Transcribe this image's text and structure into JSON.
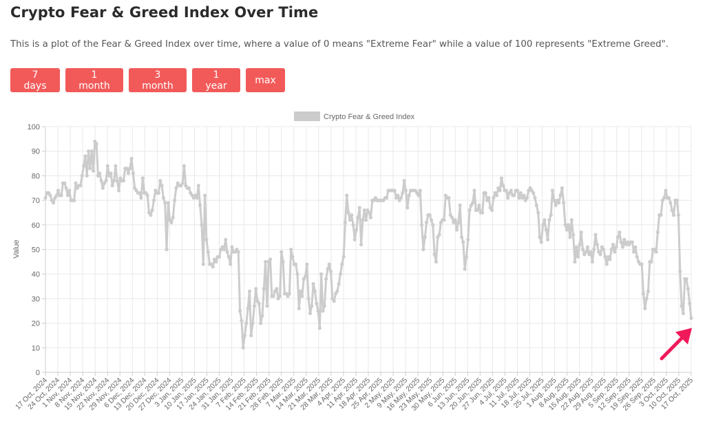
{
  "page": {
    "title": "Crypto Fear & Greed Index Over Time",
    "description": "This is a plot of the Fear & Greed Index over time, where a value of 0 means \"Extreme Fear\" while a value of 100 represents \"Extreme Greed\"."
  },
  "range_buttons": [
    {
      "label": "7 days"
    },
    {
      "label": "1 month"
    },
    {
      "label": "3 month"
    },
    {
      "label": "1 year"
    },
    {
      "label": "max"
    }
  ],
  "colors": {
    "button_bg": "#f25a5a",
    "line": "#cccccc",
    "grid": "#e8e8e8",
    "axis_text": "#666666",
    "arrow": "#f0195a"
  },
  "annotation": {
    "type": "arrow",
    "color": "#f0195a",
    "points_to": "latest value (17 Oct, 2025)"
  },
  "chart_data": {
    "type": "line",
    "title": "",
    "legend": [
      "Crypto Fear & Greed Index"
    ],
    "legend_position": "top",
    "xlabel": "",
    "ylabel": "Value",
    "ylim": [
      0,
      100
    ],
    "yticks": [
      0,
      10,
      20,
      30,
      40,
      50,
      60,
      70,
      80,
      90,
      100
    ],
    "grid": true,
    "x_tick_labels": [
      "17 Oct, 2024",
      "24 Oct, 2024",
      "1 Nov, 2024",
      "8 Nov, 2024",
      "15 Nov, 2024",
      "22 Nov, 2024",
      "29 Nov, 2024",
      "6 Dec, 2024",
      "13 Dec, 2024",
      "20 Dec, 2024",
      "27 Dec, 2024",
      "3 Jan, 2025",
      "10 Jan, 2025",
      "17 Jan, 2025",
      "24 Jan, 2025",
      "31 Jan, 2025",
      "7 Feb, 2025",
      "14 Feb, 2025",
      "21 Feb, 2025",
      "28 Feb, 2025",
      "7 Mar, 2025",
      "14 Mar, 2025",
      "21 Mar, 2025",
      "28 Mar, 2025",
      "4 Apr, 2025",
      "11 Apr, 2025",
      "18 Apr, 2025",
      "25 Apr, 2025",
      "2 May, 2025",
      "9 May, 2025",
      "16 May, 2025",
      "23 May, 2025",
      "30 May, 2025",
      "6 Jun, 2025",
      "13 Jun, 2025",
      "20 Jun, 2025",
      "27 Jun, 2025",
      "4 Jul, 2025",
      "11 Jul, 2025",
      "18 Jul, 2025",
      "25 Jul, 2025",
      "1 Aug, 2025",
      "8 Aug, 2025",
      "15 Aug, 2025",
      "22 Aug, 2025",
      "29 Aug, 2025",
      "5 Sep, 2025",
      "12 Sep, 2025",
      "19 Sep, 2025",
      "26 Sep, 2025",
      "3 Oct, 2025",
      "10 Oct, 2025",
      "17 Oct, 2025"
    ],
    "series": [
      {
        "name": "Crypto Fear & Greed Index",
        "x_unit": "days since 17 Oct, 2024",
        "values": [
          71,
          73,
          73,
          72,
          70,
          69,
          71,
          72,
          74,
          72,
          72,
          77,
          77,
          75,
          72,
          74,
          70,
          70,
          70,
          77,
          75,
          76,
          76,
          80,
          84,
          88,
          80,
          90,
          83,
          90,
          82,
          94,
          93,
          80,
          81,
          78,
          75,
          77,
          78,
          84,
          80,
          81,
          76,
          78,
          84,
          78,
          74,
          79,
          78,
          78,
          83,
          83,
          81,
          83,
          87,
          81,
          75,
          74,
          73,
          73,
          71,
          79,
          73,
          73,
          72,
          65,
          64,
          66,
          70,
          74,
          73,
          73,
          78,
          76,
          71,
          69,
          50,
          69,
          62,
          61,
          63,
          70,
          75,
          77,
          76,
          76,
          77,
          84,
          76,
          75,
          75,
          73,
          72,
          71,
          72,
          71,
          76,
          68,
          60,
          44,
          72,
          54,
          49,
          44,
          44,
          43,
          46,
          45,
          47,
          47,
          50,
          51,
          50,
          54,
          49,
          47,
          44,
          51,
          49,
          49,
          50,
          49,
          25,
          21,
          10,
          15,
          20,
          26,
          33,
          15,
          20,
          27,
          34,
          29,
          28,
          20,
          23,
          34,
          45,
          27,
          45,
          46,
          31,
          31,
          33,
          34,
          30,
          31,
          49,
          45,
          32,
          32,
          31,
          32,
          50,
          47,
          44,
          44,
          40,
          26,
          33,
          31,
          38,
          39,
          44,
          30,
          24,
          27,
          36,
          33,
          28,
          25,
          18,
          40,
          25,
          27,
          38,
          42,
          44,
          41,
          30,
          29,
          32,
          33,
          36,
          40,
          44,
          47,
          61,
          72,
          65,
          62,
          64,
          60,
          54,
          58,
          63,
          67,
          52,
          62,
          66,
          62,
          66,
          65,
          63,
          70,
          70,
          71,
          70,
          70,
          70,
          70,
          70,
          71,
          71,
          74,
          74,
          74,
          74,
          74,
          71,
          72,
          70,
          71,
          73,
          78,
          74,
          67,
          72,
          74,
          74,
          74,
          74,
          73,
          72,
          74,
          60,
          50,
          55,
          61,
          64,
          64,
          62,
          60,
          48,
          45,
          55,
          56,
          61,
          62,
          62,
          72,
          71,
          71,
          64,
          63,
          61,
          62,
          58,
          61,
          68,
          55,
          53,
          42,
          47,
          54,
          66,
          68,
          69,
          74,
          66,
          66,
          68,
          65,
          65,
          73,
          73,
          70,
          71,
          67,
          66,
          71,
          73,
          72,
          75,
          74,
          79,
          76,
          74,
          74,
          71,
          73,
          74,
          72,
          72,
          74,
          74,
          71,
          73,
          71,
          72,
          70,
          71,
          74,
          75,
          74,
          73,
          71,
          68,
          65,
          55,
          53,
          60,
          62,
          58,
          54,
          62,
          64,
          74,
          70,
          68,
          70,
          69,
          72,
          75,
          69,
          60,
          58,
          60,
          55,
          62,
          56,
          45,
          51,
          47,
          52,
          57,
          50,
          48,
          49,
          51,
          48,
          49,
          45,
          50,
          56,
          52,
          49,
          48,
          51,
          50,
          47,
          44,
          47,
          46,
          50,
          52,
          49,
          51,
          55,
          57,
          53,
          51,
          54,
          52,
          53,
          52,
          53,
          53,
          49,
          51,
          47,
          45,
          44,
          44,
          32,
          26,
          30,
          33,
          45,
          45,
          50,
          50,
          49,
          57,
          64,
          64,
          70,
          71,
          74,
          71,
          71,
          69,
          66,
          64,
          70,
          70,
          64,
          41,
          27,
          24,
          38,
          38,
          34,
          28,
          22
        ]
      }
    ],
    "latest_value": 22
  }
}
